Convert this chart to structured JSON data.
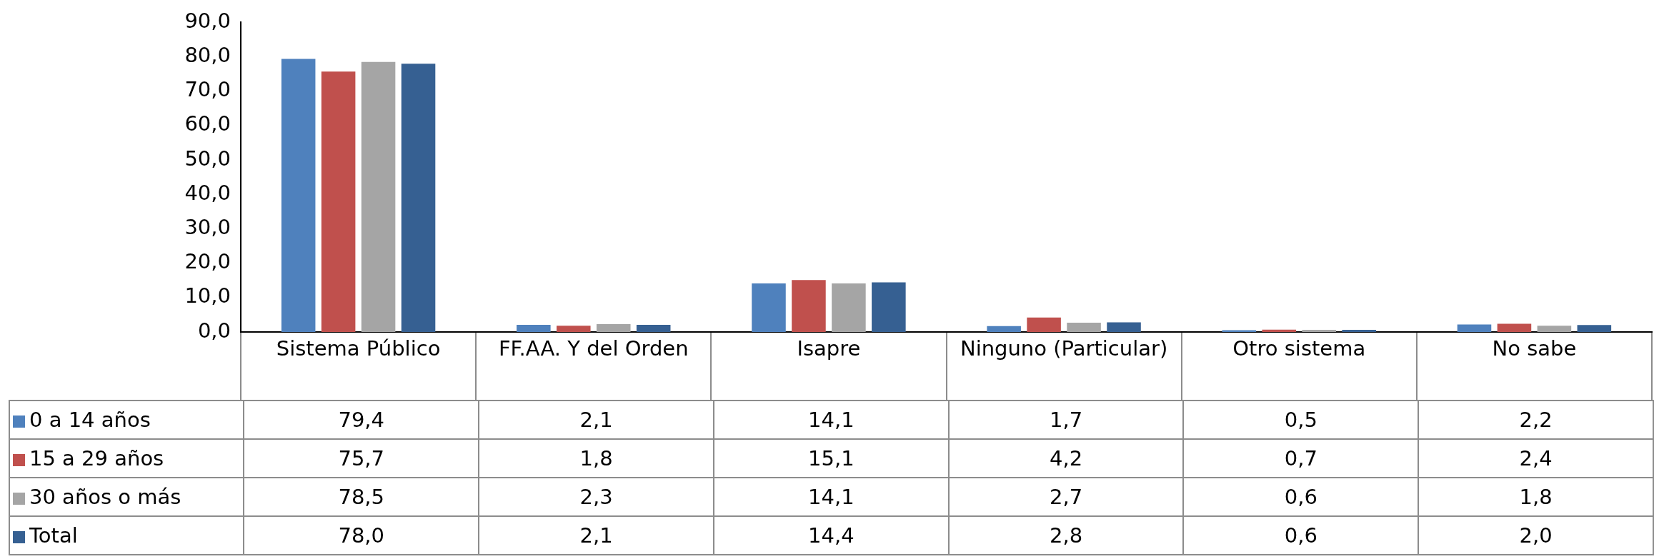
{
  "chart_data": {
    "type": "bar",
    "categories": [
      "Sistema Público",
      "FF.AA. Y del Orden",
      "Isapre",
      "Ninguno (Particular)",
      "Otro sistema",
      "No sabe"
    ],
    "series": [
      {
        "name": "0 a 14 años",
        "color": "#4f81bd",
        "values": [
          79.4,
          2.1,
          14.1,
          1.7,
          0.5,
          2.2
        ],
        "value_labels": [
          "79,4",
          "2,1",
          "14,1",
          "1,7",
          "0,5",
          "2,2"
        ]
      },
      {
        "name": "15 a 29 años",
        "color": "#c0504d",
        "values": [
          75.7,
          1.8,
          15.1,
          4.2,
          0.7,
          2.4
        ],
        "value_labels": [
          "75,7",
          "1,8",
          "15,1",
          "4,2",
          "0,7",
          "2,4"
        ]
      },
      {
        "name": "30 años o más",
        "color": "#a5a5a5",
        "values": [
          78.5,
          2.3,
          14.1,
          2.7,
          0.6,
          1.8
        ],
        "value_labels": [
          "78,5",
          "2,3",
          "14,1",
          "2,7",
          "0,6",
          "1,8"
        ]
      },
      {
        "name": "Total",
        "color": "#366092",
        "values": [
          78.0,
          2.1,
          14.4,
          2.8,
          0.6,
          2.0
        ],
        "value_labels": [
          "78,0",
          "2,1",
          "14,4",
          "2,8",
          "0,6",
          "2,0"
        ]
      }
    ],
    "ylim": [
      0,
      90
    ],
    "yticks": [
      {
        "value": 0,
        "label": "0,0"
      },
      {
        "value": 10,
        "label": "10,0"
      },
      {
        "value": 20,
        "label": "20,0"
      },
      {
        "value": 30,
        "label": "30,0"
      },
      {
        "value": 40,
        "label": "40,0"
      },
      {
        "value": 50,
        "label": "50,0"
      },
      {
        "value": 60,
        "label": "60,0"
      },
      {
        "value": 70,
        "label": "70,0"
      },
      {
        "value": 80,
        "label": "80,0"
      },
      {
        "value": 90,
        "label": "90,0"
      }
    ],
    "grid": false,
    "legend": "bottom"
  }
}
